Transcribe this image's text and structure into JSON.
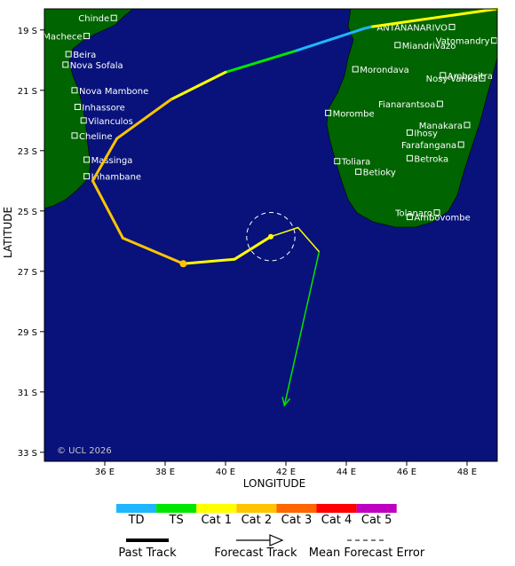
{
  "map": {
    "x_axis_label": "LONGITUDE",
    "y_axis_label": "LATITUDE",
    "lon_ticks": [
      "36 E",
      "38 E",
      "40 E",
      "42 E",
      "44 E",
      "46 E",
      "48 E"
    ],
    "lat_ticks": [
      "19 S",
      "21 S",
      "23 S",
      "25 S",
      "27 S",
      "29 S",
      "31 S",
      "33 S"
    ],
    "copyright": "© UCL 2026",
    "colors": {
      "ocean": "#08127a",
      "land": "#006400",
      "border": "#000000"
    },
    "places": [
      {
        "name": "Chinde",
        "lon": 36.3,
        "lat": 18.6
      },
      {
        "name": "Machece",
        "lon": 35.4,
        "lat": 19.2
      },
      {
        "name": "Beira",
        "lon": 34.8,
        "lat": 19.8
      },
      {
        "name": "Nova Sofala",
        "lon": 34.7,
        "lat": 20.15
      },
      {
        "name": "Nova Mambone",
        "lon": 35.0,
        "lat": 21.0
      },
      {
        "name": "Inhassore",
        "lon": 35.1,
        "lat": 21.55
      },
      {
        "name": "Vilanculos",
        "lon": 35.3,
        "lat": 22.0
      },
      {
        "name": "Cheline",
        "lon": 35.0,
        "lat": 22.5
      },
      {
        "name": "Massinga",
        "lon": 35.4,
        "lat": 23.3
      },
      {
        "name": "Inhambane",
        "lon": 35.4,
        "lat": 23.85
      },
      {
        "name": "ANTANANARIVO",
        "lon": 47.5,
        "lat": 18.9
      },
      {
        "name": "Vatomandry",
        "lon": 48.9,
        "lat": 19.35
      },
      {
        "name": "Miandrivazo",
        "lon": 45.7,
        "lat": 19.5
      },
      {
        "name": "Morondava",
        "lon": 44.3,
        "lat": 20.3
      },
      {
        "name": "Ambositra",
        "lon": 47.2,
        "lat": 20.5
      },
      {
        "name": "Nosy-Varika",
        "lon": 48.5,
        "lat": 20.6
      },
      {
        "name": "Fianarantsoa",
        "lon": 47.1,
        "lat": 21.45
      },
      {
        "name": "Morombe",
        "lon": 43.4,
        "lat": 21.75
      },
      {
        "name": "Manakara",
        "lon": 48.0,
        "lat": 22.15
      },
      {
        "name": "Ihosy",
        "lon": 46.1,
        "lat": 22.4
      },
      {
        "name": "Farafangana",
        "lon": 47.8,
        "lat": 22.8
      },
      {
        "name": "Toliara",
        "lon": 43.7,
        "lat": 23.35
      },
      {
        "name": "Betroka",
        "lon": 46.1,
        "lat": 23.25
      },
      {
        "name": "Betioky",
        "lon": 44.4,
        "lat": 23.7
      },
      {
        "name": "Tolanaro",
        "lon": 47.0,
        "lat": 25.05
      },
      {
        "name": "Ambovombe",
        "lon": 46.1,
        "lat": 25.2
      }
    ],
    "past_track": [
      {
        "lon": 49.0,
        "lat": 18.3,
        "cat": "Cat 1"
      },
      {
        "lon": 44.8,
        "lat": 18.9,
        "cat": "Cat 1"
      },
      {
        "lon": 44.6,
        "lat": 18.95,
        "cat": "TD"
      },
      {
        "lon": 42.3,
        "lat": 19.7,
        "cat": "TD"
      },
      {
        "lon": 40.0,
        "lat": 20.4,
        "cat": "TS"
      },
      {
        "lon": 38.2,
        "lat": 21.3,
        "cat": "Cat 1"
      },
      {
        "lon": 36.4,
        "lat": 22.6,
        "cat": "Cat 2"
      },
      {
        "lon": 35.6,
        "lat": 24.0,
        "cat": "Cat 2"
      },
      {
        "lon": 36.6,
        "lat": 25.9,
        "cat": "Cat 2"
      },
      {
        "lon": 38.6,
        "lat": 26.75,
        "cat": "Cat 2"
      },
      {
        "lon": 40.3,
        "lat": 26.6,
        "cat": "Cat 1"
      },
      {
        "lon": 41.5,
        "lat": 25.85,
        "cat": "Cat 1"
      },
      {
        "lon": 42.4,
        "lat": 25.55,
        "cat": "Cat 1"
      },
      {
        "lon": 43.1,
        "lat": 26.35,
        "cat": "Cat 1"
      }
    ],
    "track_dots": [
      {
        "lon": 38.6,
        "lat": 26.75,
        "cat": "Cat 2"
      },
      {
        "lon": 41.5,
        "lat": 25.85,
        "cat": "Cat 1"
      }
    ],
    "forecast_track": [
      {
        "lon": 43.1,
        "lat": 26.35,
        "cat": "TS"
      },
      {
        "lon": 41.95,
        "lat": 31.45,
        "cat": "TS"
      }
    ],
    "error_circle": {
      "lon": 41.5,
      "lat": 25.85,
      "radius_deg": 0.8
    }
  },
  "legend": {
    "categories": [
      {
        "label": "TD",
        "color": "#1eb6ff"
      },
      {
        "label": "TS",
        "color": "#00e600"
      },
      {
        "label": "Cat 1",
        "color": "#ffff00"
      },
      {
        "label": "Cat 2",
        "color": "#ffc400"
      },
      {
        "label": "Cat 3",
        "color": "#ff6600"
      },
      {
        "label": "Cat 4",
        "color": "#ff0000"
      },
      {
        "label": "Cat 5",
        "color": "#c000c0"
      }
    ],
    "past_track_label": "Past Track",
    "forecast_track_label": "Forecast Track",
    "error_label": "Mean Forecast Error"
  }
}
